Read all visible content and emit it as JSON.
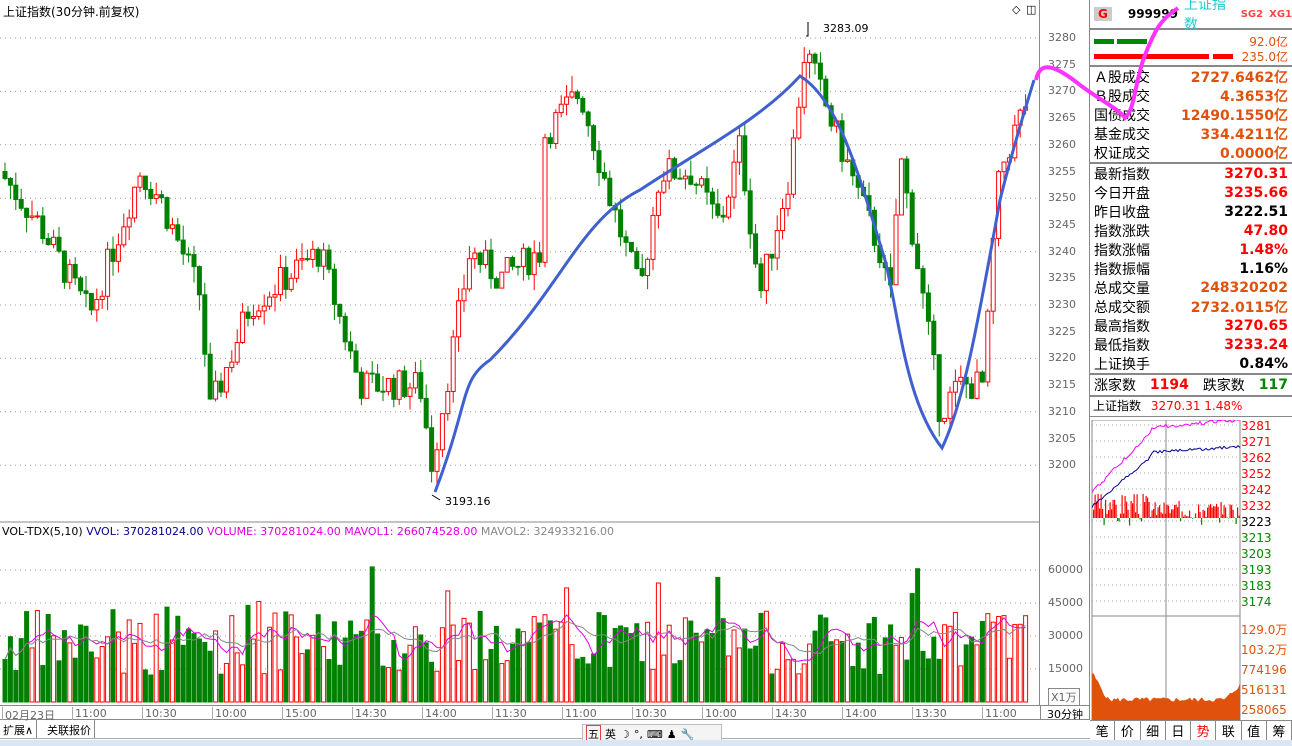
{
  "header": {
    "title": "上证指数(30分钟.前复权)",
    "high_label": "3283.09",
    "low_label": "3193.16"
  },
  "price_axis": [
    "3280",
    "3275",
    "3270",
    "3265",
    "3260",
    "3255",
    "3250",
    "3245",
    "3240",
    "3235",
    "3230",
    "3225",
    "3220",
    "3215",
    "3210",
    "3205",
    "3200"
  ],
  "volume_header": {
    "name": "VOL-TDX(5,10)",
    "vvol": "VVOL: 370281024.00",
    "volume": "VOLUME: 370281024.00",
    "mavol1": "MAVOL1: 266074528.00",
    "mavol2": "MAVOL2: 324933216.00"
  },
  "volume_axis": [
    "60000",
    "45000",
    "30000",
    "15000"
  ],
  "volume_unit": "X1万",
  "time_axis": [
    "02月23日",
    "11:00",
    "10:30",
    "10:00",
    "15:00",
    "14:30",
    "14:00",
    "11:30",
    "11:00",
    "10:30",
    "10:00",
    "14:30",
    "14:00",
    "13:30",
    "11:00"
  ],
  "period": "30分钟",
  "bottom_tabs": [
    "扩展∧",
    "关联报价"
  ],
  "ime": [
    "五",
    "英",
    "☽",
    "°,",
    "⌨",
    "♟",
    "🔧"
  ],
  "panel": {
    "logo": "G",
    "code": "999999",
    "name": "上证指数",
    "sg": "SG2",
    "xg": "XG1",
    "bar1": "92.0亿",
    "bar2": "235.0亿",
    "turnover": [
      {
        "k": "Ａ股成交",
        "v": "2727.6462亿"
      },
      {
        "k": "Ｂ股成交",
        "v": "4.3653亿"
      },
      {
        "k": "国债成交",
        "v": "12490.1550亿"
      },
      {
        "k": "基金成交",
        "v": "334.4211亿"
      },
      {
        "k": "权证成交",
        "v": "0.0000亿"
      }
    ],
    "stats": [
      {
        "k": "最新指数",
        "v": "3270.31",
        "c": "rd"
      },
      {
        "k": "今日开盘",
        "v": "3235.66",
        "c": "rd"
      },
      {
        "k": "昨日收盘",
        "v": "3222.51",
        "c": "bk"
      },
      {
        "k": "指数涨跌",
        "v": "47.80",
        "c": "rd"
      },
      {
        "k": "指数涨幅",
        "v": "1.48%",
        "c": "rd"
      },
      {
        "k": "指数振幅",
        "v": "1.16%",
        "c": "bk"
      },
      {
        "k": "总成交量",
        "v": "248320202",
        "c": "or"
      },
      {
        "k": "总成交额",
        "v": "2732.0115亿",
        "c": "or"
      },
      {
        "k": "最高指数",
        "v": "3270.65",
        "c": "rd"
      },
      {
        "k": "最低指数",
        "v": "3233.24",
        "c": "rd"
      },
      {
        "k": "上证换手",
        "v": "0.84%",
        "c": "bk"
      }
    ],
    "up_label": "涨家数",
    "up": "1194",
    "down_label": "跌家数",
    "down": "117",
    "mini_title": "上证指数",
    "mini_price": "3270.31",
    "mini_pct": "1.48%",
    "mini_axis": [
      "3281",
      "3271",
      "3262",
      "3252",
      "3242",
      "3232",
      "3223",
      "3213",
      "3203",
      "3193",
      "3183",
      "3174"
    ],
    "mini_vol_axis": [
      "129.0万",
      "103.2万",
      "774196",
      "516131",
      "258065"
    ],
    "tabs": [
      "笔",
      "价",
      "细",
      "日",
      "势",
      "联",
      "值",
      "筹"
    ]
  },
  "chart_data": {
    "type": "candlestick",
    "ylim": [
      3193,
      3285
    ],
    "keypoints": [
      [
        0,
        3255
      ],
      [
        40,
        3245
      ],
      [
        90,
        3228
      ],
      [
        140,
        3255
      ],
      [
        160,
        3250
      ],
      [
        200,
        3232
      ],
      [
        210,
        3210
      ],
      [
        250,
        3230
      ],
      [
        320,
        3240
      ],
      [
        360,
        3215
      ],
      [
        420,
        3215
      ],
      [
        432,
        3200
      ],
      [
        470,
        3240
      ],
      [
        500,
        3235
      ],
      [
        540,
        3240
      ],
      [
        545,
        3262
      ],
      [
        580,
        3270
      ],
      [
        610,
        3250
      ],
      [
        640,
        3232
      ],
      [
        660,
        3255
      ],
      [
        690,
        3255
      ],
      [
        720,
        3245
      ],
      [
        740,
        3260
      ],
      [
        760,
        3232
      ],
      [
        790,
        3255
      ],
      [
        805,
        3278
      ],
      [
        830,
        3265
      ],
      [
        850,
        3255
      ],
      [
        880,
        3240
      ],
      [
        890,
        3230
      ],
      [
        900,
        3258
      ],
      [
        920,
        3235
      ],
      [
        940,
        3210
      ],
      [
        960,
        3215
      ],
      [
        985,
        3215
      ],
      [
        990,
        3235
      ],
      [
        1000,
        3255
      ],
      [
        1030,
        3270
      ]
    ],
    "colors": {
      "up": "#ff0000",
      "down": "#008000",
      "ma": "#4060d0",
      "mark": "#ff33ff"
    }
  }
}
